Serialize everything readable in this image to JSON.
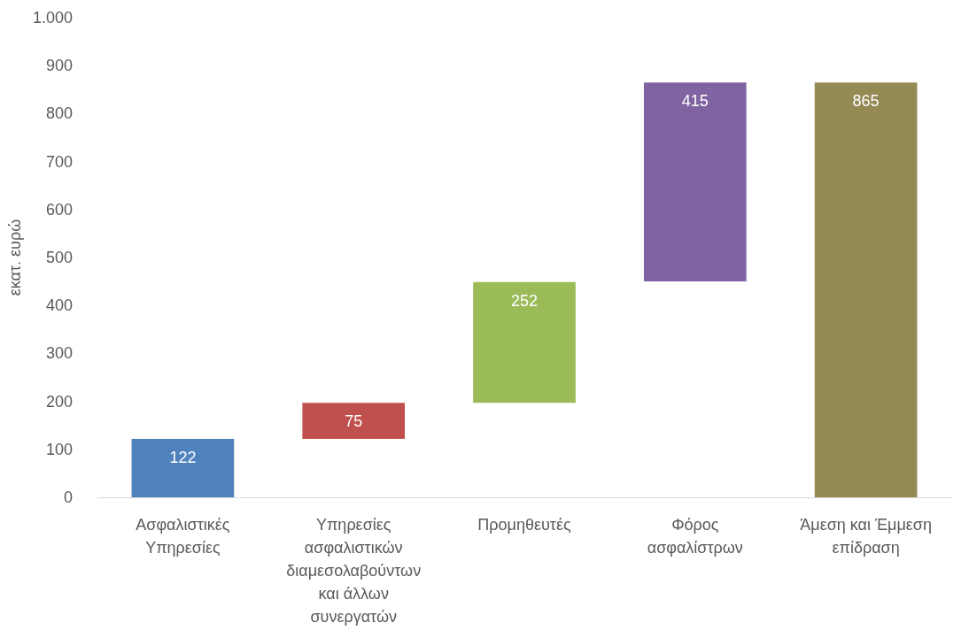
{
  "chart_data": {
    "type": "bar",
    "ylabel": "εκατ. ευρώ",
    "categories": [
      "Ασφαλιστικές Υπηρεσίες",
      "Υπηρεσίες ασφαλιστικών διαμεσολαβούντων και άλλων συνεργατών",
      "Προμηθευτές",
      "Φόρος ασφαλίστρων",
      "Άμεση και Έμμεση επίδραση"
    ],
    "values": [
      122,
      75,
      252,
      415,
      865
    ],
    "base": [
      0,
      122,
      197,
      450,
      0
    ],
    "colors": [
      "#4f81bd",
      "#c0504d",
      "#9bbb59",
      "#8064a2",
      "#948a54"
    ],
    "data_labels": true,
    "ylim": [
      0,
      1000
    ],
    "yticks": [
      0,
      100,
      200,
      300,
      400,
      500,
      600,
      700,
      800,
      900,
      {
        "value": 1000,
        "label": "1.000"
      }
    ],
    "grid": false
  }
}
